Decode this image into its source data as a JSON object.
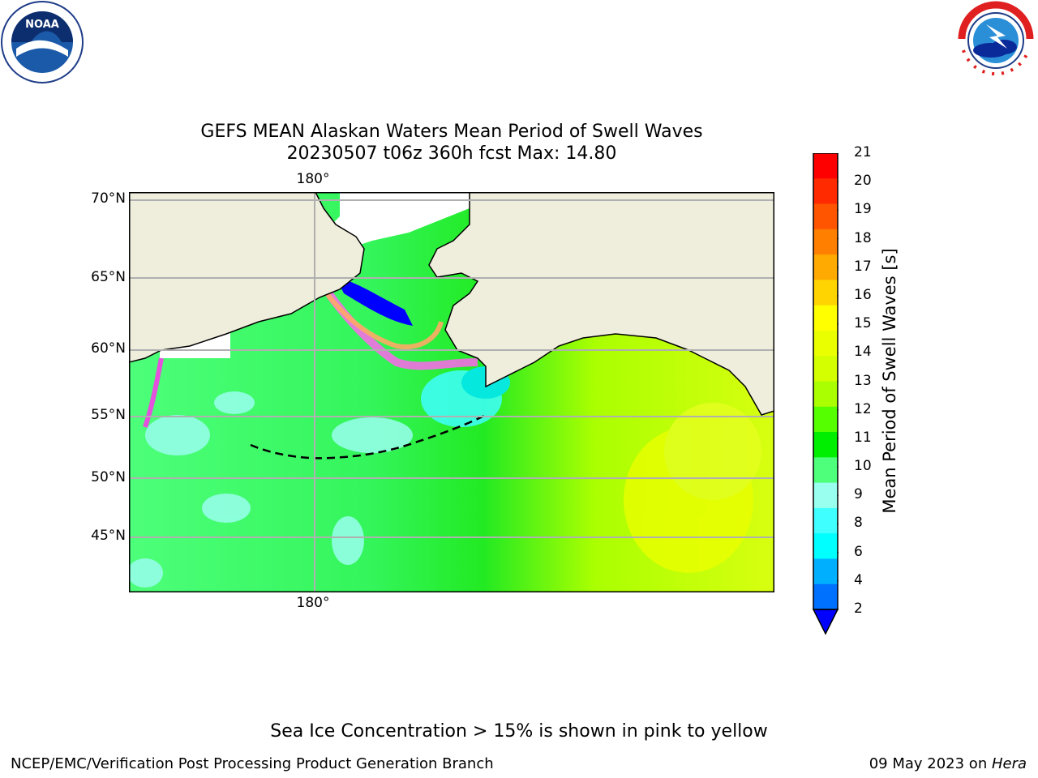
{
  "header": {
    "title_line1": "GEFS MEAN Alaskan Waters Mean Period of Swell Waves",
    "title_line2": "20230507 t06z 360h fcst   Max: 14.80"
  },
  "logos": {
    "noaa_text": "NOAA",
    "nws_text": "NATIONAL WEATHER SERVICE"
  },
  "map": {
    "lat_labels": [
      "70°N",
      "65°N",
      "60°N",
      "55°N",
      "50°N",
      "45°N"
    ],
    "lon_label_top": "180°",
    "lon_label_bottom": "180°",
    "colors": {
      "land": "#efeddb",
      "ice": "#ffffff",
      "background_sea": "#4dff7a",
      "gridline": "#b0b0b0"
    }
  },
  "colorbar": {
    "label": "Mean Period of Swell Waves [s]",
    "ticks": [
      "21",
      "20",
      "19",
      "18",
      "17",
      "16",
      "15",
      "14",
      "13",
      "12",
      "11",
      "10",
      "9",
      "8",
      "6",
      "4",
      "2"
    ],
    "colors_top_to_bottom": [
      "#ff0000",
      "#ff2a00",
      "#ff5500",
      "#ff7f00",
      "#ffaa00",
      "#ffd400",
      "#ffff00",
      "#eaff00",
      "#d4ff00",
      "#aaff00",
      "#55ff00",
      "#00ee00",
      "#4dff7a",
      "#99ffee",
      "#40ffff",
      "#00ffff",
      "#00b0ff",
      "#0070ff",
      "#0000ff"
    ]
  },
  "notes": {
    "ice_note": "Sea Ice Concentration > 15% is shown in pink to yellow"
  },
  "footer": {
    "left": "NCEP/EMC/Verification Post Processing Product Generation Branch",
    "right_date": "09 May 2023 on ",
    "right_host": "Hera"
  }
}
